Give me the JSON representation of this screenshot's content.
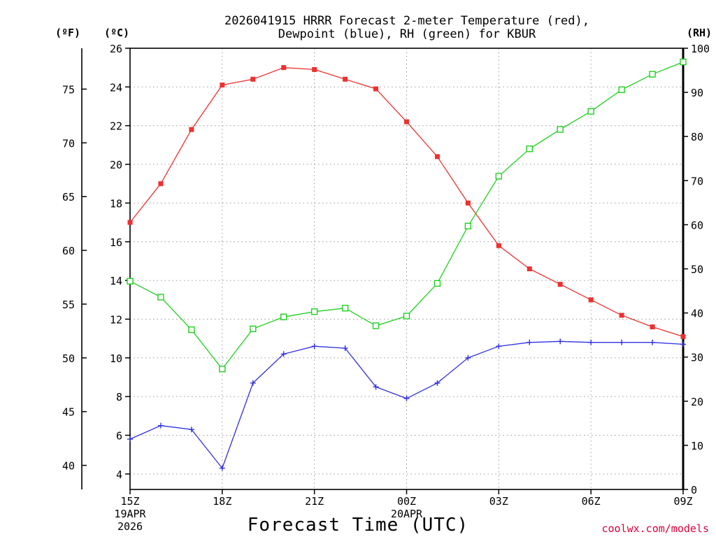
{
  "chart_data": {
    "type": "line",
    "title_lines": [
      "2026041915 HRRR Forecast 2-meter Temperature (red),",
      "Dewpoint (blue), RH (green) for KBUR"
    ],
    "xlabel": "Forecast Time (UTC)",
    "credit": "coolwx.com/models",
    "units": {
      "fahrenheit": "(ºF)",
      "celsius": "(ºC)",
      "rh": "(RH)"
    },
    "x_ticks": [
      {
        "h": 0,
        "label": "15Z",
        "sub1": "19APR",
        "sub2": "2026"
      },
      {
        "h": 3,
        "label": "18Z"
      },
      {
        "h": 6,
        "label": "21Z"
      },
      {
        "h": 9,
        "label": "00Z",
        "sub1": "20APR"
      },
      {
        "h": 12,
        "label": "03Z"
      },
      {
        "h": 15,
        "label": "06Z"
      },
      {
        "h": 18,
        "label": "09Z"
      }
    ],
    "xlim": [
      0,
      18
    ],
    "ylim_celsius": [
      3.2,
      26
    ],
    "ylim_rh": [
      0,
      100
    ],
    "celsius_ticks": [
      "4",
      "6",
      "8",
      "10",
      "12",
      "14",
      "16",
      "18",
      "20",
      "22",
      "24",
      "26"
    ],
    "fahrenheit_ticks": [
      "40",
      "45",
      "50",
      "55",
      "60",
      "65",
      "70",
      "75"
    ],
    "rh_ticks": [
      "0",
      "10",
      "20",
      "30",
      "40",
      "50",
      "60",
      "70",
      "80",
      "90",
      "100"
    ],
    "grid": true,
    "series": [
      {
        "name": "Temperature",
        "axis": "celsius",
        "color": "#ee3030",
        "marker": "filled-square",
        "x": [
          0,
          1,
          2,
          3,
          4,
          5,
          6,
          7,
          8,
          9,
          10,
          11,
          12,
          13,
          14,
          15,
          16,
          17,
          18
        ],
        "values": [
          17.0,
          19.0,
          21.8,
          24.1,
          24.4,
          25.0,
          24.9,
          24.4,
          23.9,
          22.2,
          20.4,
          18.0,
          15.8,
          14.6,
          13.8,
          13.0,
          12.2,
          11.6,
          11.1
        ]
      },
      {
        "name": "Dewpoint",
        "axis": "celsius",
        "color": "#3030e0",
        "marker": "plus",
        "x": [
          0,
          1,
          2,
          3,
          4,
          5,
          6,
          7,
          8,
          9,
          10,
          11,
          12,
          13,
          14,
          15,
          16,
          17,
          18
        ],
        "values": [
          5.8,
          6.5,
          6.3,
          4.3,
          8.7,
          10.2,
          10.6,
          10.5,
          8.5,
          7.9,
          8.7,
          10.0,
          10.6,
          10.8,
          10.85,
          10.8,
          10.8,
          10.8,
          10.7
        ]
      },
      {
        "name": "RH",
        "axis": "rh",
        "color": "#20d020",
        "marker": "open-square",
        "x": [
          0,
          1,
          2,
          3,
          4,
          5,
          6,
          7,
          8,
          9,
          10,
          11,
          12,
          13,
          14,
          15,
          16,
          17,
          18
        ],
        "values": [
          47.2,
          43.6,
          36.2,
          27.3,
          36.4,
          39.1,
          40.3,
          41.1,
          37.1,
          39.3,
          46.7,
          59.7,
          71.0,
          77.2,
          81.6,
          85.7,
          90.6,
          94.1,
          96.9
        ]
      }
    ]
  }
}
